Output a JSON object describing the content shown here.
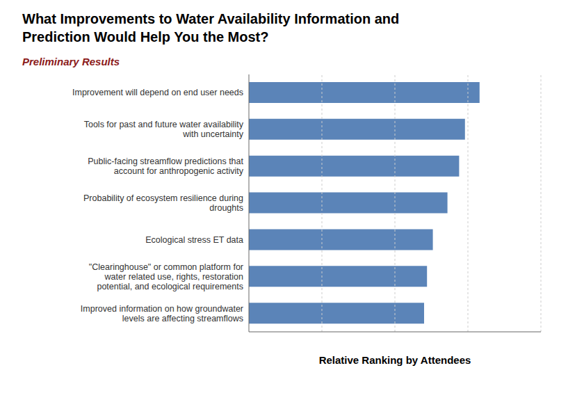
{
  "chart_data": {
    "type": "bar",
    "orientation": "horizontal",
    "title": "What Improvements to Water Availability Information and\nPrediction Would Help You the Most?",
    "subtitle": "Preliminary Results",
    "xlabel": "Relative Ranking by Attendees",
    "categories": [
      "Improved information on how groundwater\nlevels are affecting streamflows",
      "\"Clearinghouse\" or common platform for\nwater related use, rights, restoration\npotential, and ecological requirements",
      "Ecological stress ET data",
      "Probability of ecosystem resilience during\ndroughts",
      "Public-facing streamflow predictions that\naccount for anthropogenic activity",
      "Tools for past and future water availability\nwith uncertainty",
      "Improvement will depend on end user needs"
    ],
    "values": [
      6.0,
      6.1,
      6.3,
      6.8,
      7.2,
      7.4,
      7.9
    ],
    "color": "#5b84b8",
    "xlim": [
      0,
      10
    ],
    "xticks": [
      2.5,
      5,
      7.5,
      10
    ],
    "grid": true,
    "tick_labels": "y"
  }
}
